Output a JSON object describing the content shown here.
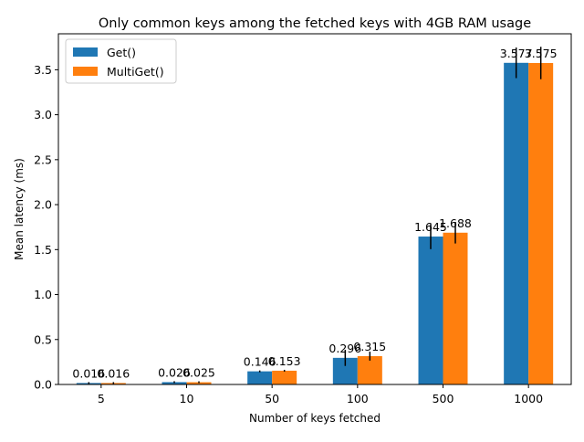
{
  "chart_data": {
    "type": "bar",
    "title": "Only common keys among the fetched keys with 4GB RAM usage",
    "xlabel": "Number of keys fetched",
    "ylabel": "Mean latency (ms)",
    "categories": [
      "5",
      "10",
      "50",
      "100",
      "500",
      "1000"
    ],
    "ylim": [
      0,
      3.9
    ],
    "yticks": [
      "0.0",
      "0.5",
      "1.0",
      "1.5",
      "2.0",
      "2.5",
      "3.0",
      "3.5"
    ],
    "grid": false,
    "legend_position": "top-left",
    "series": [
      {
        "name": "Get()",
        "color": "#1f77b4",
        "values": [
          0.016,
          0.026,
          0.146,
          0.296,
          1.645,
          3.577
        ],
        "labels": [
          "0.016",
          "0.026",
          "0.146",
          "0.296",
          "1.645",
          "3.577"
        ],
        "errors": [
          0.01,
          0.01,
          0.01,
          0.09,
          0.14,
          0.17
        ]
      },
      {
        "name": "MultiGet()",
        "color": "#ff7f0e",
        "values": [
          0.016,
          0.025,
          0.153,
          0.315,
          1.688,
          3.575
        ],
        "labels": [
          "0.016",
          "0.025",
          "0.153",
          "0.315",
          "1.688",
          "3.575"
        ],
        "errors": [
          0.01,
          0.01,
          0.01,
          0.05,
          0.12,
          0.18
        ]
      }
    ]
  }
}
